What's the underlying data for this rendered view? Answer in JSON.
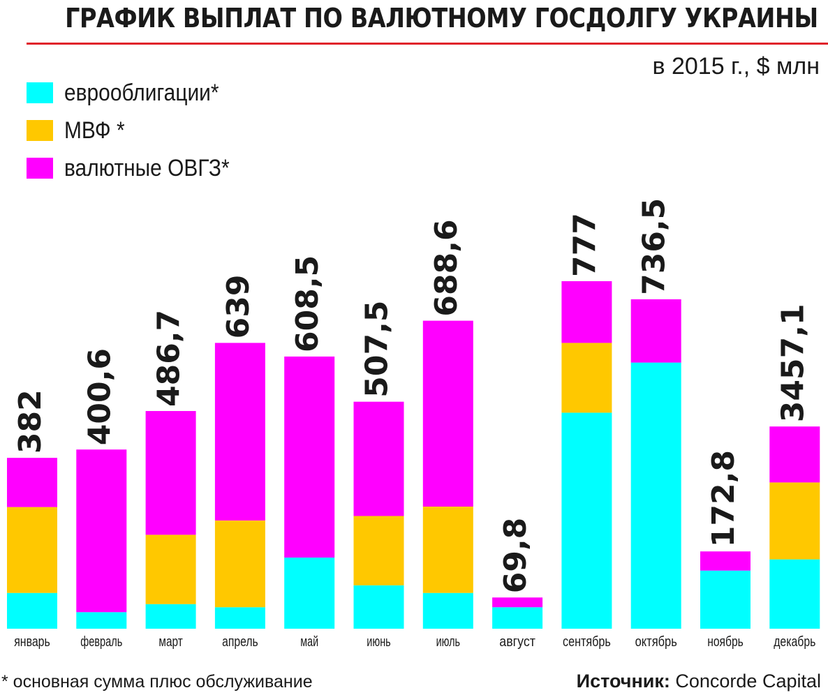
{
  "header": {
    "title": "ГРАФИК ВЫПЛАТ ПО ВАЛЮТНОМУ ГОСДОЛГУ УКРАИНЫ",
    "subtitle": "в 2015 г., $ млн"
  },
  "footer": {
    "footnote": "* основная сумма плюс обслуживание",
    "source_label": "Источник:",
    "source_value": "Concorde Capital"
  },
  "colors": {
    "eurobonds": "#00ffff",
    "imf": "#ffc800",
    "ovgz": "#ff00ff",
    "title_rule": "#e0202a"
  },
  "chart_data": {
    "type": "bar",
    "stacked": true,
    "categories": [
      "январь",
      "февраль",
      "март",
      "апрель",
      "май",
      "июнь",
      "июль",
      "август",
      "сентябрь",
      "октябрь",
      "ноябрь",
      "декабрь"
    ],
    "totals": [
      "382",
      "400,6",
      "486,7",
      "639",
      "608,5",
      "507,5",
      "688,6",
      "69,8",
      "777",
      "736,5",
      "172,8",
      "3457,1"
    ],
    "axis_break_in": "декабрь",
    "series": [
      {
        "name": "еврооблигации*",
        "color_key": "eurobonds",
        "values": [
          80,
          37,
          55,
          48,
          159,
          97,
          80,
          48,
          483,
          595,
          130,
          3160
        ]
      },
      {
        "name": "МВФ *",
        "color_key": "imf",
        "values": [
          192,
          0,
          155,
          194,
          0,
          155,
          193,
          0,
          156,
          0,
          0,
          172
        ]
      },
      {
        "name": "валютные ОВГЗ*",
        "color_key": "ovgz",
        "values": [
          110,
          363.6,
          276.7,
          397,
          449.5,
          255.5,
          415.6,
          21.8,
          138,
          141.5,
          42.8,
          125.1
        ]
      }
    ]
  }
}
